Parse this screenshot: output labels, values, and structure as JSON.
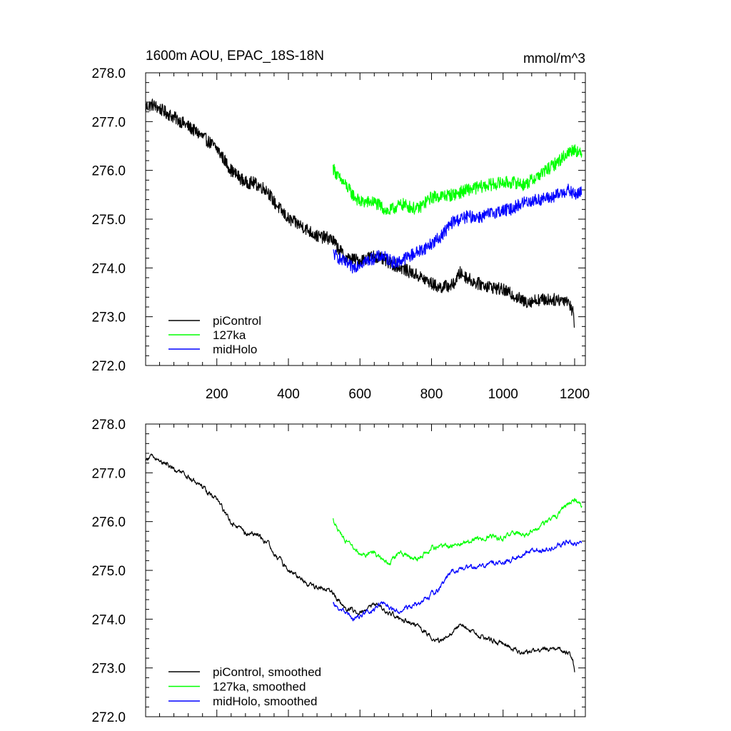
{
  "chart_data": [
    {
      "type": "line",
      "title": "1600m AOU, EPAC_18S-18N",
      "units": "mmol/m^3",
      "xlim": [
        1,
        1230
      ],
      "ylim": [
        272.0,
        278.0
      ],
      "xticks": [
        200,
        400,
        600,
        800,
        1000,
        1200
      ],
      "xtick_labels": [
        "200",
        "400",
        "600",
        "800",
        "1000",
        "1200"
      ],
      "yticks": [
        272.0,
        273.0,
        274.0,
        275.0,
        276.0,
        277.0,
        278.0
      ],
      "ytick_labels": [
        "272.0",
        "273.0",
        "274.0",
        "275.0",
        "276.0",
        "277.0",
        "278.0"
      ],
      "legend_position": "bottom-left",
      "series": [
        {
          "name": "piControl",
          "color": "#000000",
          "noise": 0.13,
          "anchors": [
            [
              1,
              277.3
            ],
            [
              20,
              277.35
            ],
            [
              100,
              277.0
            ],
            [
              150,
              276.75
            ],
            [
              200,
              276.45
            ],
            [
              240,
              276.0
            ],
            [
              280,
              275.75
            ],
            [
              300,
              275.75
            ],
            [
              340,
              275.6
            ],
            [
              360,
              275.35
            ],
            [
              400,
              275.0
            ],
            [
              440,
              274.85
            ],
            [
              480,
              274.65
            ],
            [
              520,
              274.6
            ],
            [
              560,
              274.2
            ],
            [
              600,
              274.15
            ],
            [
              640,
              274.25
            ],
            [
              700,
              274.05
            ],
            [
              760,
              273.85
            ],
            [
              820,
              273.6
            ],
            [
              860,
              273.65
            ],
            [
              880,
              273.9
            ],
            [
              920,
              273.7
            ],
            [
              1000,
              273.55
            ],
            [
              1040,
              273.4
            ],
            [
              1060,
              273.3
            ],
            [
              1100,
              273.35
            ],
            [
              1140,
              273.35
            ],
            [
              1180,
              273.35
            ],
            [
              1195,
              273.1
            ],
            [
              1200,
              272.85
            ]
          ]
        },
        {
          "name": "127ka",
          "color": "#00ff00",
          "noise": 0.13,
          "anchors": [
            [
              525,
              276.05
            ],
            [
              540,
              275.85
            ],
            [
              560,
              275.7
            ],
            [
              580,
              275.5
            ],
            [
              600,
              275.35
            ],
            [
              640,
              275.35
            ],
            [
              680,
              275.15
            ],
            [
              700,
              275.25
            ],
            [
              720,
              275.3
            ],
            [
              760,
              275.2
            ],
            [
              800,
              275.45
            ],
            [
              860,
              275.5
            ],
            [
              900,
              275.6
            ],
            [
              960,
              275.7
            ],
            [
              1000,
              275.75
            ],
            [
              1040,
              275.75
            ],
            [
              1060,
              275.7
            ],
            [
              1100,
              275.9
            ],
            [
              1140,
              276.1
            ],
            [
              1180,
              276.35
            ],
            [
              1200,
              276.45
            ],
            [
              1220,
              276.3
            ]
          ]
        },
        {
          "name": "midHolo",
          "color": "#0000ff",
          "noise": 0.13,
          "anchors": [
            [
              525,
              274.3
            ],
            [
              550,
              274.15
            ],
            [
              580,
              274.0
            ],
            [
              600,
              274.1
            ],
            [
              640,
              274.2
            ],
            [
              660,
              274.25
            ],
            [
              700,
              274.1
            ],
            [
              740,
              274.25
            ],
            [
              780,
              274.4
            ],
            [
              820,
              274.6
            ],
            [
              860,
              274.95
            ],
            [
              900,
              275.05
            ],
            [
              940,
              275.05
            ],
            [
              980,
              275.15
            ],
            [
              1020,
              275.2
            ],
            [
              1060,
              275.35
            ],
            [
              1100,
              275.4
            ],
            [
              1140,
              275.45
            ],
            [
              1180,
              275.6
            ],
            [
              1200,
              275.5
            ],
            [
              1220,
              275.55
            ]
          ]
        }
      ]
    },
    {
      "type": "line",
      "title": "",
      "xlim": [
        1,
        1230
      ],
      "ylim": [
        272.0,
        278.0
      ],
      "xticks": [
        200,
        400,
        600,
        800,
        1000,
        1200
      ],
      "yticks": [
        272.0,
        273.0,
        274.0,
        275.0,
        276.0,
        277.0,
        278.0
      ],
      "ytick_labels": [
        "272.0",
        "273.0",
        "274.0",
        "275.0",
        "276.0",
        "277.0",
        "278.0"
      ],
      "legend_position": "bottom-left",
      "series": [
        {
          "name": "piControl, smoothed",
          "color": "#000000",
          "noise": 0.035,
          "anchors": [
            [
              1,
              277.25
            ],
            [
              20,
              277.35
            ],
            [
              100,
              277.0
            ],
            [
              150,
              276.75
            ],
            [
              200,
              276.45
            ],
            [
              240,
              276.0
            ],
            [
              280,
              275.75
            ],
            [
              300,
              275.75
            ],
            [
              340,
              275.6
            ],
            [
              360,
              275.35
            ],
            [
              400,
              275.0
            ],
            [
              440,
              274.8
            ],
            [
              480,
              274.65
            ],
            [
              520,
              274.6
            ],
            [
              560,
              274.2
            ],
            [
              600,
              274.15
            ],
            [
              640,
              274.3
            ],
            [
              700,
              274.05
            ],
            [
              760,
              273.85
            ],
            [
              820,
              273.55
            ],
            [
              860,
              273.75
            ],
            [
              880,
              273.9
            ],
            [
              920,
              273.7
            ],
            [
              1000,
              273.5
            ],
            [
              1040,
              273.35
            ],
            [
              1060,
              273.3
            ],
            [
              1100,
              273.35
            ],
            [
              1140,
              273.4
            ],
            [
              1180,
              273.35
            ],
            [
              1195,
              273.15
            ],
            [
              1200,
              272.95
            ]
          ]
        },
        {
          "name": "127ka, smoothed",
          "color": "#00ff00",
          "noise": 0.035,
          "anchors": [
            [
              525,
              276.05
            ],
            [
              540,
              275.8
            ],
            [
              560,
              275.6
            ],
            [
              580,
              275.45
            ],
            [
              600,
              275.3
            ],
            [
              640,
              275.35
            ],
            [
              680,
              275.1
            ],
            [
              700,
              275.3
            ],
            [
              720,
              275.35
            ],
            [
              760,
              275.2
            ],
            [
              800,
              275.45
            ],
            [
              860,
              275.5
            ],
            [
              900,
              275.6
            ],
            [
              960,
              275.7
            ],
            [
              1000,
              275.65
            ],
            [
              1040,
              275.8
            ],
            [
              1060,
              275.7
            ],
            [
              1100,
              275.9
            ],
            [
              1140,
              276.05
            ],
            [
              1180,
              276.35
            ],
            [
              1200,
              276.45
            ],
            [
              1220,
              276.3
            ]
          ]
        },
        {
          "name": "midHolo, smoothed",
          "color": "#0000ff",
          "noise": 0.035,
          "anchors": [
            [
              525,
              274.3
            ],
            [
              550,
              274.2
            ],
            [
              580,
              274.0
            ],
            [
              600,
              274.1
            ],
            [
              640,
              274.2
            ],
            [
              660,
              274.35
            ],
            [
              700,
              274.15
            ],
            [
              740,
              274.25
            ],
            [
              780,
              274.4
            ],
            [
              820,
              274.6
            ],
            [
              860,
              275.0
            ],
            [
              900,
              275.05
            ],
            [
              940,
              275.1
            ],
            [
              980,
              275.15
            ],
            [
              1020,
              275.2
            ],
            [
              1060,
              275.35
            ],
            [
              1100,
              275.4
            ],
            [
              1140,
              275.45
            ],
            [
              1180,
              275.6
            ],
            [
              1200,
              275.55
            ],
            [
              1220,
              275.55
            ]
          ]
        }
      ]
    }
  ]
}
